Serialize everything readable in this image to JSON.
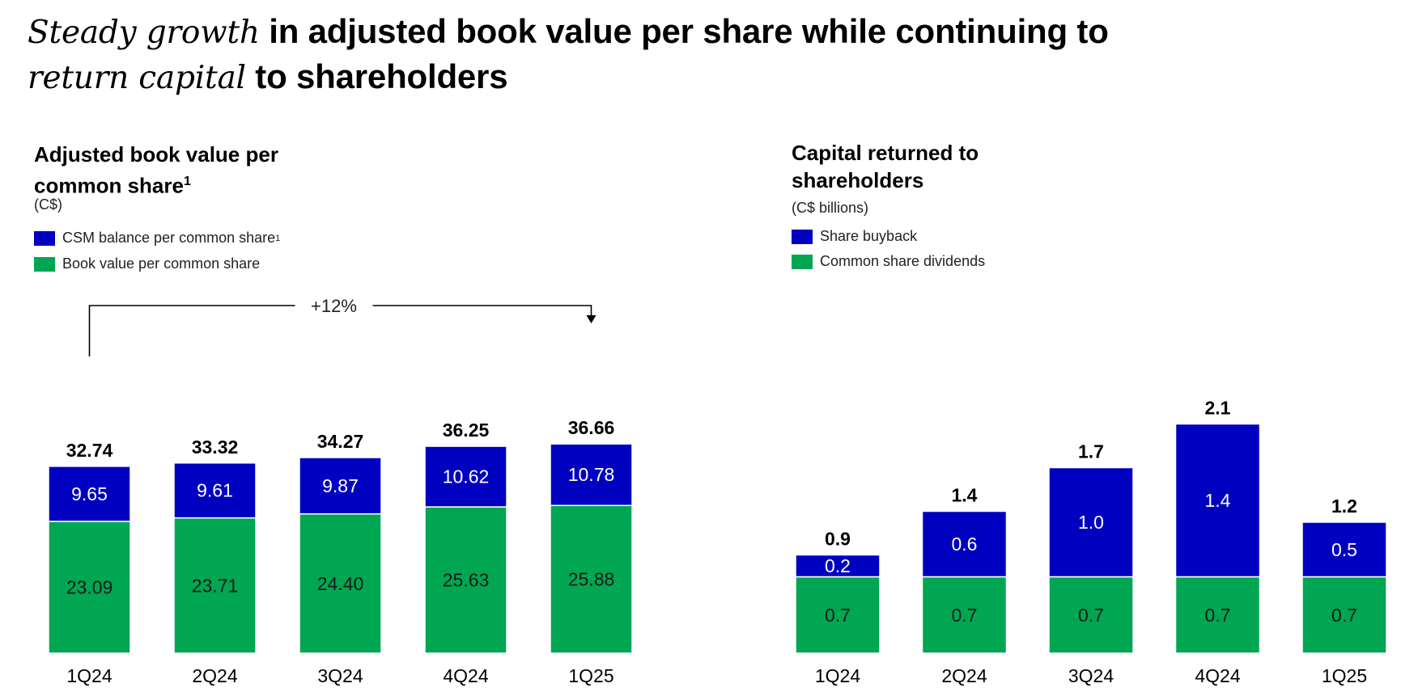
{
  "headline": {
    "line1_italic": "Steady growth",
    "line1_bold": " in adjusted book value per share while continuing to",
    "line2_italic": "return capital",
    "line2_bold": " to shareholders"
  },
  "colors": {
    "blue": "#0000C0",
    "green": "#00A651"
  },
  "left_panel": {
    "title_line1": "Adjusted book value per",
    "title_line2": "common share",
    "title_sup": "1",
    "unit": "(C$)",
    "legend": [
      {
        "label": "CSM balance per common share",
        "sup": "1",
        "color": "#0000C0"
      },
      {
        "label": "Book value per common share",
        "sup": "",
        "color": "#00A651"
      }
    ]
  },
  "right_panel": {
    "title_line1": "Capital returned to",
    "title_line2": "shareholders",
    "unit": "(C$ billions)",
    "legend": [
      {
        "label": "Share buyback",
        "color": "#0000C0"
      },
      {
        "label": "Common share dividends",
        "color": "#00A651"
      }
    ]
  },
  "chart_data": [
    {
      "type": "bar",
      "stacked": true,
      "title": "Adjusted book value per common share",
      "unit": "C$",
      "categories": [
        "1Q24",
        "2Q24",
        "3Q24",
        "4Q24",
        "1Q25"
      ],
      "series": [
        {
          "name": "Book value per common share",
          "values": [
            23.09,
            23.71,
            24.4,
            25.63,
            25.88
          ],
          "labels": [
            "23.09",
            "23.71",
            "24.40",
            "25.63",
            "25.88"
          ]
        },
        {
          "name": "CSM balance per common share",
          "values": [
            9.65,
            9.61,
            9.87,
            10.62,
            10.78
          ],
          "labels": [
            "9.65",
            "9.61",
            "9.87",
            "10.62",
            "10.78"
          ]
        }
      ],
      "totals": [
        32.74,
        33.32,
        34.27,
        36.25,
        36.66
      ],
      "total_labels": [
        "32.74",
        "33.32",
        "34.27",
        "36.25",
        "36.66"
      ],
      "annotation": {
        "text": "+12%",
        "from": "1Q24",
        "to": "1Q25"
      }
    },
    {
      "type": "bar",
      "stacked": true,
      "title": "Capital returned to shareholders",
      "unit": "C$ billions",
      "categories": [
        "1Q24",
        "2Q24",
        "3Q24",
        "4Q24",
        "1Q25"
      ],
      "series": [
        {
          "name": "Common share dividends",
          "values": [
            0.7,
            0.7,
            0.7,
            0.7,
            0.7
          ],
          "labels": [
            "0.7",
            "0.7",
            "0.7",
            "0.7",
            "0.7"
          ]
        },
        {
          "name": "Share buyback",
          "values": [
            0.2,
            0.6,
            1.0,
            1.4,
            0.5
          ],
          "labels": [
            "0.2",
            "0.6",
            "1.0",
            "1.4",
            "0.5"
          ]
        }
      ],
      "totals": [
        0.9,
        1.4,
        1.7,
        2.1,
        1.2
      ],
      "total_labels": [
        "0.9",
        "1.4",
        "1.7",
        "2.1",
        "1.2"
      ]
    }
  ]
}
